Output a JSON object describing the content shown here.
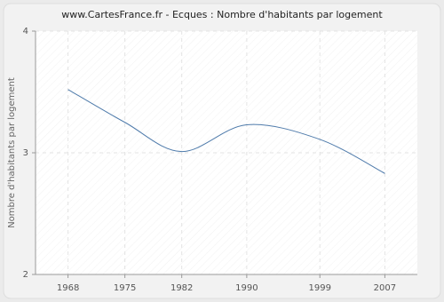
{
  "chart_data": {
    "type": "line",
    "title": "www.CartesFrance.fr - Ecques : Nombre d'habitants par logement",
    "y_label": "Nombre d'habitants par logement",
    "x": [
      1968,
      1975,
      1982,
      1990,
      1999,
      2007
    ],
    "series": [
      {
        "name": "Nombre d'habitants par logement",
        "color": "#4f7bab",
        "values": [
          3.52,
          3.25,
          3.01,
          3.23,
          3.11,
          2.83
        ]
      }
    ],
    "xlim": [
      1964,
      2011
    ],
    "xticks": [
      1968,
      1975,
      1982,
      1990,
      1999,
      2007
    ],
    "ylim": [
      2,
      4
    ],
    "yticks": [
      2,
      3,
      4
    ],
    "grid": true
  }
}
